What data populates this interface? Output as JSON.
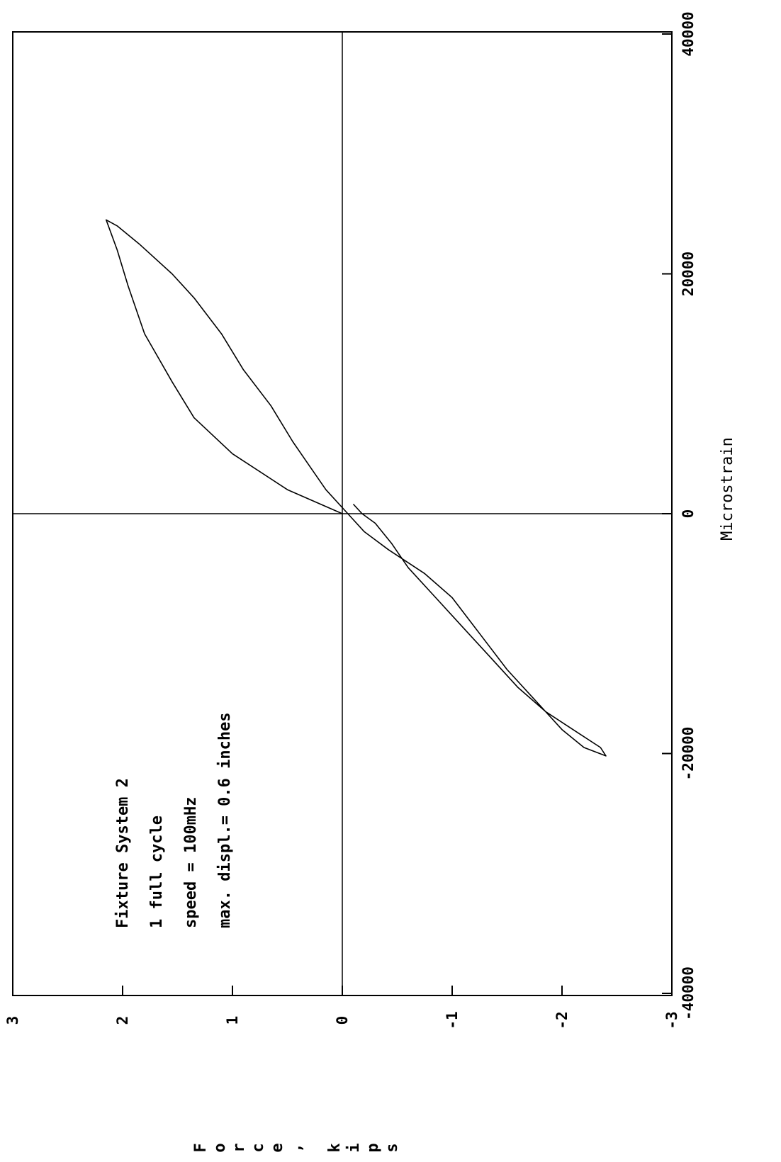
{
  "chart_data": {
    "type": "line",
    "title": "",
    "xlabel": "Microstrain",
    "ylabel": "Force, kips",
    "xlim": [
      -40000,
      40000
    ],
    "ylim": [
      -3,
      3
    ],
    "xticks": [
      {
        "value": -40000,
        "label": "-40000"
      },
      {
        "value": -20000,
        "label": "-20000"
      },
      {
        "value": 0,
        "label": "0"
      },
      {
        "value": 20000,
        "label": "20000"
      },
      {
        "value": 40000,
        "label": "40000"
      }
    ],
    "yticks": [
      {
        "value": -3,
        "label": "-3"
      },
      {
        "value": -2,
        "label": "-2"
      },
      {
        "value": -1,
        "label": "-1"
      },
      {
        "value": 0,
        "label": "0"
      },
      {
        "value": 1,
        "label": "1"
      },
      {
        "value": 2,
        "label": "2"
      },
      {
        "value": 3,
        "label": "3"
      }
    ],
    "grid": false,
    "zero_lines": true,
    "annotations": [
      "Fixture System 2",
      "1 full cycle",
      "speed = 100mHz",
      "max. displ.= 0.6 inches"
    ],
    "series": [
      {
        "line_color": "#000000",
        "points": [
          {
            "x": 0,
            "y": 0
          },
          {
            "x": 2000,
            "y": 0.5
          },
          {
            "x": 5000,
            "y": 1.0
          },
          {
            "x": 8000,
            "y": 1.35
          },
          {
            "x": 11000,
            "y": 1.55
          },
          {
            "x": 15000,
            "y": 1.8
          },
          {
            "x": 19000,
            "y": 1.95
          },
          {
            "x": 22000,
            "y": 2.05
          },
          {
            "x": 24500,
            "y": 2.15
          },
          {
            "x": 24000,
            "y": 2.05
          },
          {
            "x": 22500,
            "y": 1.85
          },
          {
            "x": 20000,
            "y": 1.55
          },
          {
            "x": 18000,
            "y": 1.35
          },
          {
            "x": 15000,
            "y": 1.1
          },
          {
            "x": 12000,
            "y": 0.9
          },
          {
            "x": 9000,
            "y": 0.65
          },
          {
            "x": 6000,
            "y": 0.45
          },
          {
            "x": 4000,
            "y": 0.3
          },
          {
            "x": 2000,
            "y": 0.15
          },
          {
            "x": 0,
            "y": -0.05
          },
          {
            "x": -1500,
            "y": -0.2
          },
          {
            "x": -3000,
            "y": -0.42
          },
          {
            "x": -5000,
            "y": -0.75
          },
          {
            "x": -7000,
            "y": -1.0
          },
          {
            "x": -10000,
            "y": -1.25
          },
          {
            "x": -13000,
            "y": -1.5
          },
          {
            "x": -16000,
            "y": -1.8
          },
          {
            "x": -18000,
            "y": -2.0
          },
          {
            "x": -19500,
            "y": -2.2
          },
          {
            "x": -20200,
            "y": -2.4
          },
          {
            "x": -19500,
            "y": -2.35
          },
          {
            "x": -18000,
            "y": -2.1
          },
          {
            "x": -16500,
            "y": -1.85
          },
          {
            "x": -14500,
            "y": -1.6
          },
          {
            "x": -12000,
            "y": -1.35
          },
          {
            "x": -9500,
            "y": -1.1
          },
          {
            "x": -7000,
            "y": -0.85
          },
          {
            "x": -4500,
            "y": -0.6
          },
          {
            "x": -2500,
            "y": -0.45
          },
          {
            "x": -800,
            "y": -0.3
          },
          {
            "x": 0,
            "y": -0.18
          },
          {
            "x": 800,
            "y": -0.1
          }
        ]
      }
    ]
  }
}
